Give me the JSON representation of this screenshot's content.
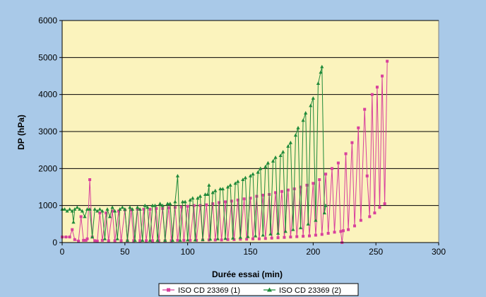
{
  "chart_data": {
    "type": "line",
    "xlabel": "Durée essai (min)",
    "ylabel": "DP (hPa)",
    "xlim": [
      0,
      300
    ],
    "ylim": [
      0,
      6000
    ],
    "x_ticks": [
      "0",
      "50",
      "100",
      "150",
      "200",
      "250",
      "300"
    ],
    "y_ticks": [
      "0",
      "1000",
      "2000",
      "3000",
      "4000",
      "5000",
      "6000"
    ],
    "grid": "horizontal",
    "legend_position": "bottom",
    "colors": {
      "background": "#a9c9e8",
      "plot_area": "#fbf3bd",
      "series_1": "#d8409c",
      "series_2": "#1f8a3a"
    },
    "series": [
      {
        "name": "ISO CD 23369 (1)",
        "marker": "square",
        "points": [
          [
            0,
            150
          ],
          [
            3,
            150
          ],
          [
            6,
            150
          ],
          [
            8,
            350
          ],
          [
            10,
            80
          ],
          [
            13,
            40
          ],
          [
            15,
            700
          ],
          [
            17,
            60
          ],
          [
            19,
            60
          ],
          [
            20,
            100
          ],
          [
            22,
            1700
          ],
          [
            24,
            150
          ],
          [
            26,
            50
          ],
          [
            28,
            40
          ],
          [
            30,
            800
          ],
          [
            32,
            60
          ],
          [
            35,
            800
          ],
          [
            37,
            50
          ],
          [
            40,
            850
          ],
          [
            42,
            50
          ],
          [
            45,
            850
          ],
          [
            47,
            50
          ],
          [
            50,
            880
          ],
          [
            52,
            50
          ],
          [
            55,
            880
          ],
          [
            57,
            50
          ],
          [
            60,
            900
          ],
          [
            62,
            50
          ],
          [
            65,
            900
          ],
          [
            67,
            50
          ],
          [
            70,
            900
          ],
          [
            72,
            50
          ],
          [
            75,
            920
          ],
          [
            77,
            50
          ],
          [
            80,
            920
          ],
          [
            82,
            50
          ],
          [
            85,
            940
          ],
          [
            87,
            50
          ],
          [
            90,
            950
          ],
          [
            92,
            60
          ],
          [
            95,
            960
          ],
          [
            97,
            60
          ],
          [
            100,
            980
          ],
          [
            102,
            60
          ],
          [
            105,
            1000
          ],
          [
            107,
            60
          ],
          [
            110,
            1000
          ],
          [
            112,
            70
          ],
          [
            115,
            1020
          ],
          [
            117,
            70
          ],
          [
            120,
            1050
          ],
          [
            122,
            70
          ],
          [
            125,
            1080
          ],
          [
            127,
            70
          ],
          [
            130,
            1100
          ],
          [
            132,
            80
          ],
          [
            135,
            1120
          ],
          [
            137,
            80
          ],
          [
            140,
            1150
          ],
          [
            142,
            90
          ],
          [
            145,
            1180
          ],
          [
            147,
            90
          ],
          [
            150,
            1200
          ],
          [
            152,
            100
          ],
          [
            155,
            1250
          ],
          [
            157,
            100
          ],
          [
            160,
            1280
          ],
          [
            162,
            110
          ],
          [
            165,
            1300
          ],
          [
            167,
            120
          ],
          [
            170,
            1350
          ],
          [
            172,
            130
          ],
          [
            175,
            1380
          ],
          [
            177,
            140
          ],
          [
            180,
            1420
          ],
          [
            182,
            150
          ],
          [
            185,
            1450
          ],
          [
            187,
            160
          ],
          [
            190,
            1500
          ],
          [
            192,
            170
          ],
          [
            195,
            1550
          ],
          [
            197,
            180
          ],
          [
            200,
            1600
          ],
          [
            202,
            200
          ],
          [
            205,
            1700
          ],
          [
            207,
            220
          ],
          [
            210,
            1850
          ],
          [
            212,
            250
          ],
          [
            215,
            2000
          ],
          [
            217,
            280
          ],
          [
            220,
            2150
          ],
          [
            222,
            300
          ],
          [
            223,
            0
          ],
          [
            224,
            320
          ],
          [
            226,
            2400
          ],
          [
            228,
            350
          ],
          [
            231,
            2700
          ],
          [
            233,
            450
          ],
          [
            236,
            3100
          ],
          [
            238,
            600
          ],
          [
            241,
            3600
          ],
          [
            243,
            1800
          ],
          [
            245,
            700
          ],
          [
            247,
            4000
          ],
          [
            249,
            800
          ],
          [
            251,
            4200
          ],
          [
            253,
            950
          ],
          [
            255,
            4500
          ],
          [
            257,
            1050
          ],
          [
            259,
            4900
          ]
        ]
      },
      {
        "name": "ISO CD 23369 (2)",
        "marker": "triangle",
        "points": [
          [
            0,
            900
          ],
          [
            2,
            900
          ],
          [
            4,
            850
          ],
          [
            6,
            900
          ],
          [
            8,
            850
          ],
          [
            9,
            550
          ],
          [
            10,
            900
          ],
          [
            12,
            950
          ],
          [
            14,
            900
          ],
          [
            16,
            850
          ],
          [
            18,
            700
          ],
          [
            20,
            900
          ],
          [
            22,
            900
          ],
          [
            24,
            150
          ],
          [
            26,
            900
          ],
          [
            28,
            850
          ],
          [
            30,
            900
          ],
          [
            32,
            850
          ],
          [
            34,
            100
          ],
          [
            36,
            900
          ],
          [
            38,
            700
          ],
          [
            40,
            950
          ],
          [
            42,
            850
          ],
          [
            44,
            100
          ],
          [
            46,
            900
          ],
          [
            48,
            950
          ],
          [
            50,
            900
          ],
          [
            52,
            60
          ],
          [
            54,
            950
          ],
          [
            56,
            900
          ],
          [
            58,
            60
          ],
          [
            60,
            950
          ],
          [
            62,
            900
          ],
          [
            64,
            60
          ],
          [
            66,
            1000
          ],
          [
            68,
            950
          ],
          [
            70,
            60
          ],
          [
            72,
            1000
          ],
          [
            74,
            1000
          ],
          [
            76,
            60
          ],
          [
            78,
            1050
          ],
          [
            80,
            1000
          ],
          [
            82,
            60
          ],
          [
            84,
            1050
          ],
          [
            86,
            1050
          ],
          [
            88,
            60
          ],
          [
            90,
            1100
          ],
          [
            92,
            1800
          ],
          [
            94,
            60
          ],
          [
            96,
            1100
          ],
          [
            98,
            1100
          ],
          [
            100,
            70
          ],
          [
            102,
            1150
          ],
          [
            104,
            1200
          ],
          [
            106,
            70
          ],
          [
            108,
            1200
          ],
          [
            110,
            1250
          ],
          [
            112,
            80
          ],
          [
            114,
            1300
          ],
          [
            116,
            1300
          ],
          [
            117,
            1550
          ],
          [
            118,
            90
          ],
          [
            120,
            1350
          ],
          [
            122,
            1400
          ],
          [
            124,
            100
          ],
          [
            126,
            1450
          ],
          [
            128,
            1450
          ],
          [
            130,
            110
          ],
          [
            132,
            1500
          ],
          [
            134,
            1550
          ],
          [
            136,
            120
          ],
          [
            138,
            1600
          ],
          [
            140,
            1650
          ],
          [
            142,
            140
          ],
          [
            144,
            1700
          ],
          [
            146,
            1750
          ],
          [
            148,
            160
          ],
          [
            150,
            1800
          ],
          [
            152,
            1850
          ],
          [
            154,
            180
          ],
          [
            156,
            1900
          ],
          [
            158,
            2000
          ],
          [
            160,
            200
          ],
          [
            162,
            2050
          ],
          [
            164,
            2150
          ],
          [
            166,
            230
          ],
          [
            168,
            2200
          ],
          [
            170,
            2300
          ],
          [
            172,
            250
          ],
          [
            174,
            2350
          ],
          [
            176,
            2450
          ],
          [
            178,
            300
          ],
          [
            180,
            2600
          ],
          [
            182,
            2700
          ],
          [
            184,
            350
          ],
          [
            186,
            2900
          ],
          [
            188,
            3100
          ],
          [
            190,
            400
          ],
          [
            192,
            3300
          ],
          [
            194,
            3500
          ],
          [
            196,
            500
          ],
          [
            198,
            3700
          ],
          [
            200,
            3900
          ],
          [
            202,
            600
          ],
          [
            204,
            4300
          ],
          [
            206,
            4600
          ],
          [
            207,
            4750
          ],
          [
            209,
            800
          ],
          [
            210,
            1000
          ]
        ]
      }
    ]
  }
}
